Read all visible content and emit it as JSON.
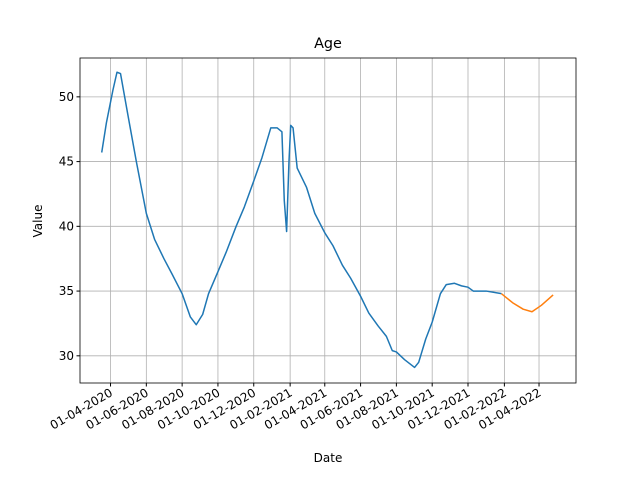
{
  "chart_data": {
    "type": "line",
    "title": "Age",
    "xlabel": "Date",
    "ylabel": "Value",
    "grid": true,
    "xlim": [
      "2020-02-09",
      "2022-06-03"
    ],
    "ylim": [
      27.9,
      53.0
    ],
    "yticks": [
      30,
      35,
      40,
      45,
      50
    ],
    "xticks": [
      {
        "value": "2020-04-01",
        "label": "01-04-2020"
      },
      {
        "value": "2020-06-01",
        "label": "01-06-2020"
      },
      {
        "value": "2020-08-01",
        "label": "01-08-2020"
      },
      {
        "value": "2020-10-01",
        "label": "01-10-2020"
      },
      {
        "value": "2020-12-01",
        "label": "01-12-2020"
      },
      {
        "value": "2021-02-01",
        "label": "01-02-2021"
      },
      {
        "value": "2021-04-01",
        "label": "01-04-2021"
      },
      {
        "value": "2021-06-01",
        "label": "01-06-2021"
      },
      {
        "value": "2021-08-01",
        "label": "01-08-2021"
      },
      {
        "value": "2021-10-01",
        "label": "01-10-2021"
      },
      {
        "value": "2021-12-01",
        "label": "01-12-2021"
      },
      {
        "value": "2022-02-01",
        "label": "01-02-2022"
      },
      {
        "value": "2022-04-01",
        "label": "01-04-2022"
      }
    ],
    "series": [
      {
        "color": "#1f77b4",
        "x": [
          "2020-03-17",
          "2020-03-25",
          "2020-04-05",
          "2020-04-12",
          "2020-04-18",
          "2020-05-01",
          "2020-05-15",
          "2020-06-01",
          "2020-06-15",
          "2020-07-01",
          "2020-07-15",
          "2020-08-01",
          "2020-08-15",
          "2020-08-25",
          "2020-09-05",
          "2020-09-15",
          "2020-10-01",
          "2020-10-15",
          "2020-11-01",
          "2020-11-15",
          "2020-12-01",
          "2020-12-15",
          "2020-12-30",
          "2021-01-10",
          "2021-01-18",
          "2021-01-22",
          "2021-01-26",
          "2021-01-30",
          "2021-02-02",
          "2021-02-06",
          "2021-02-13",
          "2021-03-01",
          "2021-03-15",
          "2021-04-01",
          "2021-04-15",
          "2021-05-01",
          "2021-05-15",
          "2021-06-01",
          "2021-06-15",
          "2021-07-01",
          "2021-07-15",
          "2021-07-25",
          "2021-08-01",
          "2021-08-15",
          "2021-09-01",
          "2021-09-08",
          "2021-09-20",
          "2021-10-01",
          "2021-10-15",
          "2021-10-25",
          "2021-11-08",
          "2021-11-20",
          "2021-12-01",
          "2021-12-10",
          "2021-12-20",
          "2022-01-01",
          "2022-01-27"
        ],
        "values": [
          45.7,
          48,
          50.5,
          51.9,
          51.8,
          48.5,
          45,
          41,
          39,
          37.5,
          36.3,
          34.8,
          33,
          32.4,
          33.2,
          34.8,
          36.5,
          38,
          40,
          41.5,
          43.5,
          45.3,
          47.6,
          47.6,
          47.3,
          42,
          39.6,
          45,
          47.8,
          47.6,
          44.5,
          43,
          41,
          39.5,
          38.5,
          37,
          36,
          34.6,
          33.3,
          32.3,
          31.5,
          30.4,
          30.3,
          29.7,
          29.1,
          29.5,
          31.3,
          32.6,
          34.8,
          35.5,
          35.6,
          35.4,
          35.3,
          35.0,
          35.0,
          35.0,
          34.8
        ]
      },
      {
        "color": "#ff7f0e",
        "x": [
          "2022-01-27",
          "2022-02-15",
          "2022-03-05",
          "2022-03-20",
          "2022-04-05",
          "2022-04-25"
        ],
        "values": [
          34.8,
          34.1,
          33.6,
          33.4,
          33.9,
          34.7
        ]
      }
    ]
  }
}
